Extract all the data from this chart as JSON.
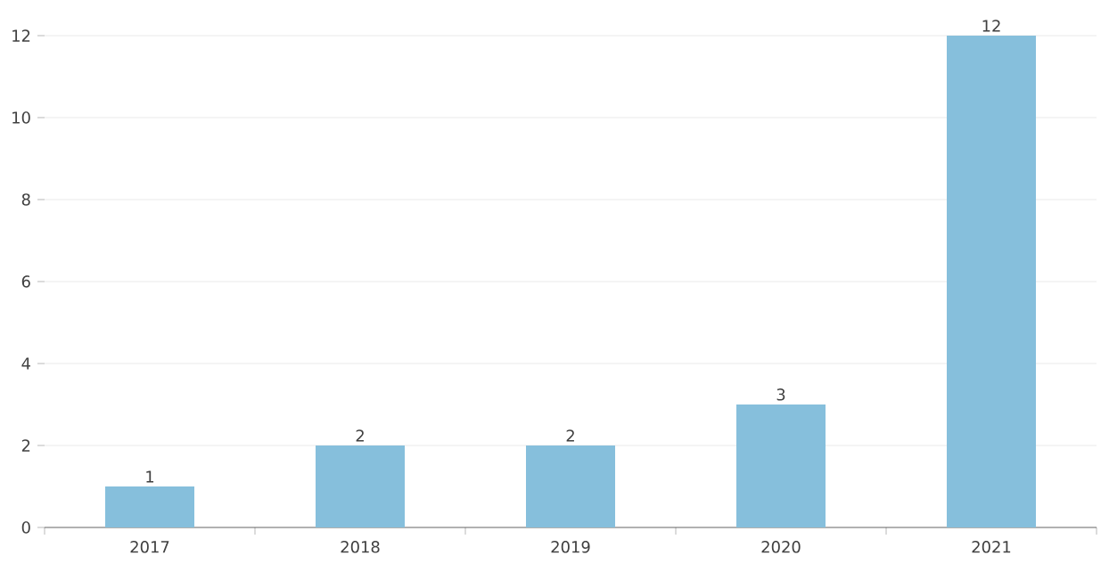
{
  "chart_data": {
    "type": "bar",
    "categories": [
      "2017",
      "2018",
      "2019",
      "2020",
      "2021"
    ],
    "values": [
      1,
      2,
      2,
      3,
      12
    ],
    "color": "#86bfdc",
    "ylim": [
      0,
      12
    ],
    "yticks": [
      0,
      2,
      4,
      6,
      8,
      10,
      12
    ],
    "grid": "y",
    "data_labels": true
  }
}
